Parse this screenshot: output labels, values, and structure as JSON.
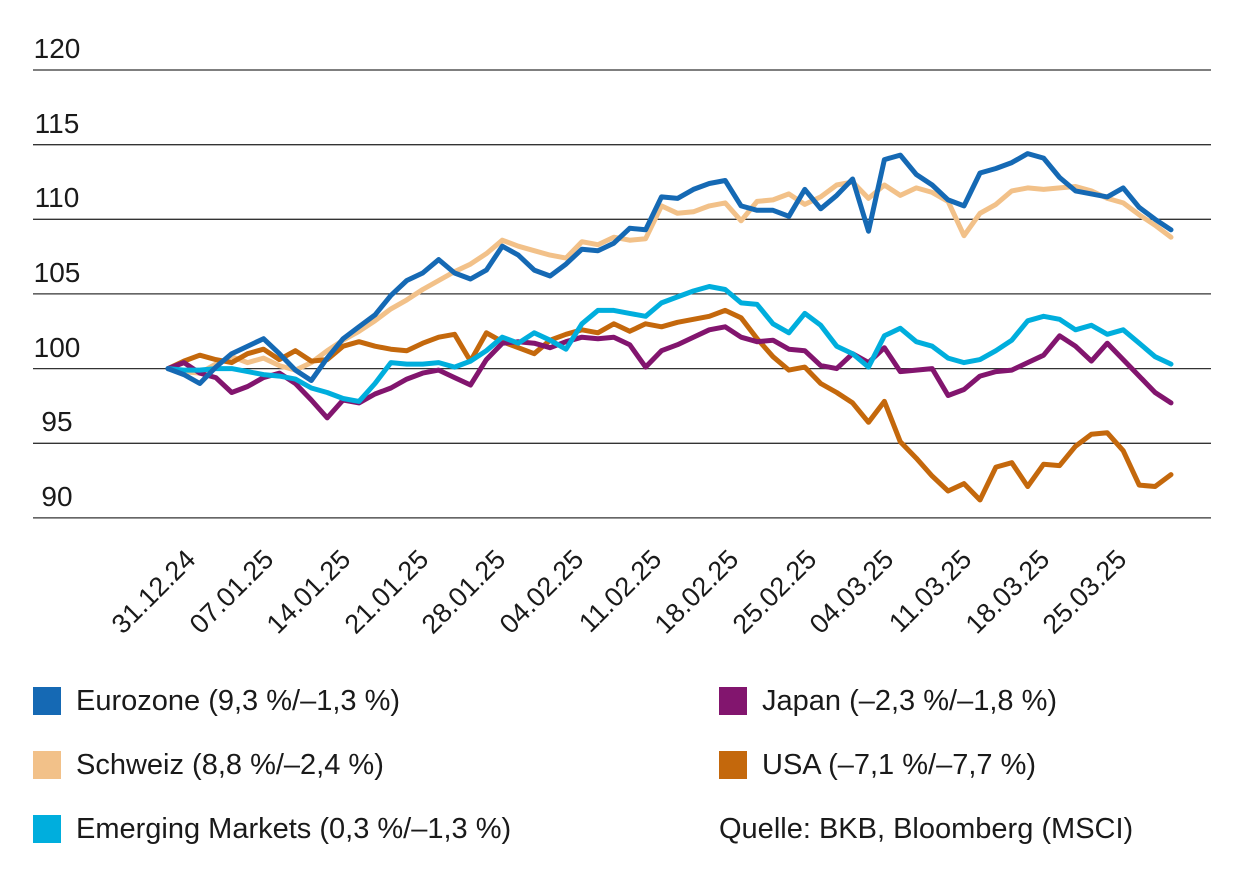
{
  "chart_data": {
    "type": "line",
    "title": "",
    "grid": true,
    "legend_position": "bottom",
    "y_axis": {
      "tick_labels": [
        "120",
        "115",
        "110",
        "105",
        "100",
        "95",
        "90"
      ],
      "gridline_values": [
        120,
        115,
        110,
        105,
        100,
        95,
        90
      ],
      "ylim": [
        88.5,
        121.5
      ]
    },
    "x_axis": {
      "tick_labels": [
        "31.12.24",
        "07.01.25",
        "14.01.25",
        "21.01.25",
        "28.01.25",
        "04.02.25",
        "11.02.25",
        "18.02.25",
        "25.02.25",
        "04.03.25",
        "11.03.25",
        "18.03.25",
        "25.03.25"
      ],
      "points_per_tick": 5,
      "n_points": 64
    },
    "index_base": 100,
    "series": [
      {
        "name": "Eurozone",
        "legend_label": "Eurozone (9,3 %/–1,3 %)",
        "color": "#1569b4",
        "values": [
          100.0,
          99.6,
          99.0,
          100.1,
          101.0,
          101.5,
          102.0,
          101.0,
          99.9,
          99.2,
          100.7,
          102.0,
          102.8,
          103.6,
          104.9,
          105.9,
          106.4,
          107.3,
          106.4,
          106.0,
          106.6,
          108.2,
          107.6,
          106.6,
          106.2,
          107.0,
          108.0,
          107.9,
          108.4,
          109.4,
          109.3,
          111.5,
          111.4,
          112.0,
          112.4,
          112.6,
          110.9,
          110.6,
          110.6,
          110.2,
          112.0,
          110.7,
          111.6,
          112.7,
          109.2,
          114.0,
          114.3,
          113.0,
          112.3,
          111.3,
          110.9,
          113.1,
          113.4,
          113.8,
          114.4,
          114.1,
          112.8,
          111.9,
          111.7,
          111.5,
          112.1,
          110.8,
          110.0,
          109.3
        ]
      },
      {
        "name": "Schweiz",
        "legend_label": "Schweiz (8,8 %/–2,4 %)",
        "color": "#f2c189",
        "values": [
          100.0,
          99.8,
          99.7,
          100.3,
          100.8,
          100.4,
          100.7,
          100.2,
          99.9,
          100.4,
          101.2,
          101.9,
          102.5,
          103.2,
          104.0,
          104.6,
          105.3,
          105.9,
          106.5,
          107.0,
          107.7,
          108.6,
          108.2,
          107.9,
          107.6,
          107.4,
          108.5,
          108.3,
          108.8,
          108.6,
          108.7,
          110.9,
          110.4,
          110.5,
          110.9,
          111.1,
          109.9,
          111.2,
          111.3,
          111.7,
          111.0,
          111.5,
          112.3,
          112.5,
          111.4,
          112.3,
          111.6,
          112.1,
          111.8,
          111.2,
          108.9,
          110.4,
          111.0,
          111.9,
          112.1,
          112.0,
          112.1,
          112.2,
          111.9,
          111.4,
          111.1,
          110.3,
          109.6,
          108.8
        ]
      },
      {
        "name": "Emerging Markets",
        "legend_label": "Emerging Markets (0,3 %/–1,3 %)",
        "color": "#00aedd",
        "values": [
          100.0,
          99.9,
          99.9,
          100.0,
          100.0,
          99.8,
          99.6,
          99.5,
          99.3,
          98.7,
          98.4,
          98.0,
          97.8,
          99.0,
          100.4,
          100.3,
          100.3,
          100.4,
          100.1,
          100.5,
          101.2,
          102.1,
          101.7,
          102.4,
          101.9,
          101.3,
          103.0,
          103.9,
          103.9,
          103.7,
          103.5,
          104.4,
          104.8,
          105.2,
          105.5,
          105.3,
          104.4,
          104.3,
          103.0,
          102.4,
          103.7,
          102.9,
          101.5,
          101.0,
          100.1,
          102.2,
          102.7,
          101.8,
          101.5,
          100.7,
          100.4,
          100.6,
          101.2,
          101.9,
          103.2,
          103.5,
          103.3,
          102.6,
          102.9,
          102.3,
          102.6,
          101.7,
          100.8,
          100.3
        ]
      },
      {
        "name": "Japan",
        "legend_label": "Japan (–2,3 %/–1,8 %)",
        "color": "#82156e",
        "values": [
          100.0,
          100.4,
          99.7,
          99.4,
          98.4,
          98.8,
          99.4,
          99.7,
          99.0,
          97.9,
          96.7,
          97.9,
          97.7,
          98.3,
          98.7,
          99.3,
          99.7,
          99.9,
          99.4,
          98.9,
          100.6,
          101.7,
          101.8,
          101.7,
          101.4,
          101.8,
          102.1,
          102.0,
          102.1,
          101.6,
          100.1,
          101.2,
          101.6,
          102.1,
          102.6,
          102.8,
          102.1,
          101.8,
          101.9,
          101.3,
          101.2,
          100.2,
          100.0,
          101.0,
          100.4,
          101.4,
          99.8,
          99.9,
          100.0,
          98.2,
          98.6,
          99.5,
          99.8,
          99.9,
          100.4,
          100.9,
          102.2,
          101.5,
          100.5,
          101.7,
          100.6,
          99.5,
          98.4,
          97.7
        ]
      },
      {
        "name": "USA",
        "legend_label": "USA (–7,1 %/–7,7 %)",
        "color": "#c4680c",
        "values": [
          100.0,
          100.5,
          100.9,
          100.6,
          100.4,
          101.0,
          101.3,
          100.6,
          101.2,
          100.5,
          100.6,
          101.5,
          101.8,
          101.5,
          101.3,
          101.2,
          101.7,
          102.1,
          102.3,
          100.5,
          102.4,
          101.8,
          101.4,
          101.0,
          101.9,
          102.3,
          102.6,
          102.4,
          103.0,
          102.5,
          103.0,
          102.8,
          103.1,
          103.3,
          103.5,
          103.9,
          103.4,
          102.0,
          100.8,
          99.9,
          100.1,
          99.0,
          98.4,
          97.7,
          96.4,
          97.8,
          95.1,
          94.0,
          92.8,
          91.8,
          92.3,
          91.2,
          93.4,
          93.7,
          92.1,
          93.6,
          93.5,
          94.8,
          95.6,
          95.7,
          94.5,
          92.2,
          92.1,
          92.9
        ]
      }
    ]
  },
  "legend": {
    "columns": [
      [
        0,
        1,
        2
      ],
      [
        3,
        4
      ]
    ],
    "source": "Quelle: BKB, Bloomberg (MSCI)"
  }
}
